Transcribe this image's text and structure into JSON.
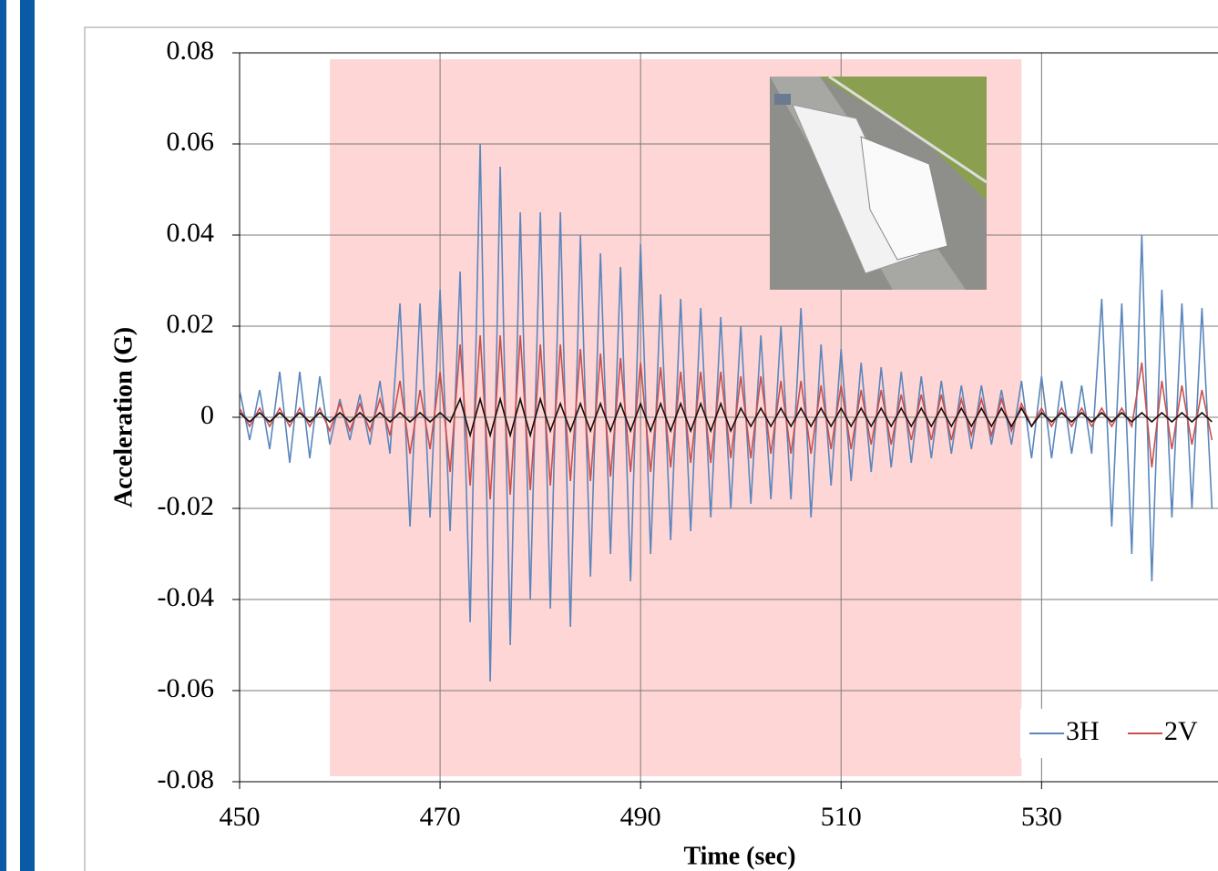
{
  "chart_data": {
    "type": "line",
    "xlabel": "Time (sec)",
    "ylabel": "Acceleration (G)",
    "x": [
      450,
      451,
      452,
      453,
      454,
      455,
      456,
      457,
      458,
      459,
      460,
      461,
      462,
      463,
      464,
      465,
      466,
      467,
      468,
      469,
      470,
      471,
      472,
      473,
      474,
      475,
      476,
      477,
      478,
      479,
      480,
      481,
      482,
      483,
      484,
      485,
      486,
      487,
      488,
      489,
      490,
      491,
      492,
      493,
      494,
      495,
      496,
      497,
      498,
      499,
      500,
      501,
      502,
      503,
      504,
      505,
      506,
      507,
      508,
      509,
      510,
      511,
      512,
      513,
      514,
      515,
      516,
      517,
      518,
      519,
      520,
      521,
      522,
      523,
      524,
      525,
      526,
      527,
      528,
      529,
      530,
      531,
      532,
      533,
      534,
      535,
      536,
      537,
      538,
      539,
      540,
      541,
      542,
      543,
      544,
      545,
      546,
      547
    ],
    "series": [
      {
        "name": "3H",
        "color": "#5a86bd",
        "values": [
          0.006,
          -0.005,
          0.006,
          -0.007,
          0.01,
          -0.01,
          0.01,
          -0.009,
          0.009,
          -0.006,
          0.004,
          -0.005,
          0.005,
          -0.006,
          0.008,
          -0.008,
          0.025,
          -0.024,
          0.025,
          -0.022,
          0.028,
          -0.025,
          0.032,
          -0.045,
          0.06,
          -0.058,
          0.055,
          -0.05,
          0.045,
          -0.04,
          0.045,
          -0.042,
          0.045,
          -0.046,
          0.04,
          -0.035,
          0.036,
          -0.03,
          0.033,
          -0.036,
          0.038,
          -0.03,
          0.027,
          -0.027,
          0.026,
          -0.025,
          0.024,
          -0.022,
          0.022,
          -0.02,
          0.02,
          -0.019,
          0.018,
          -0.018,
          0.02,
          -0.018,
          0.024,
          -0.022,
          0.016,
          -0.015,
          0.015,
          -0.014,
          0.012,
          -0.012,
          0.011,
          -0.011,
          0.01,
          -0.01,
          0.009,
          -0.009,
          0.008,
          -0.008,
          0.007,
          -0.007,
          0.007,
          -0.006,
          0.006,
          -0.006,
          0.008,
          -0.009,
          0.009,
          -0.009,
          0.008,
          -0.008,
          0.007,
          -0.008,
          0.026,
          -0.024,
          0.025,
          -0.03,
          0.04,
          -0.036,
          0.028,
          -0.022,
          0.025,
          -0.02,
          0.024,
          -0.02
        ]
      },
      {
        "name": "2V",
        "color": "#c9504d",
        "values": [
          0.002,
          -0.002,
          0.002,
          -0.002,
          0.002,
          -0.002,
          0.002,
          -0.002,
          0.002,
          -0.003,
          0.003,
          -0.003,
          0.003,
          -0.003,
          0.004,
          -0.004,
          0.008,
          -0.008,
          0.006,
          -0.007,
          0.01,
          -0.012,
          0.016,
          -0.015,
          0.018,
          -0.018,
          0.018,
          -0.017,
          0.018,
          -0.016,
          0.016,
          -0.015,
          0.016,
          -0.014,
          0.015,
          -0.014,
          0.014,
          -0.013,
          0.013,
          -0.012,
          0.012,
          -0.012,
          0.011,
          -0.011,
          0.01,
          -0.01,
          0.01,
          -0.01,
          0.01,
          -0.009,
          0.009,
          -0.009,
          0.009,
          -0.008,
          0.008,
          -0.008,
          0.008,
          -0.008,
          0.007,
          -0.007,
          0.007,
          -0.007,
          0.006,
          -0.006,
          0.006,
          -0.006,
          0.005,
          -0.005,
          0.005,
          -0.005,
          0.005,
          -0.005,
          0.004,
          -0.004,
          0.004,
          -0.004,
          0.004,
          -0.003,
          0.003,
          -0.002,
          0.002,
          -0.002,
          0.002,
          -0.002,
          0.002,
          -0.002,
          0.002,
          -0.002,
          0.002,
          -0.002,
          0.012,
          -0.011,
          0.008,
          -0.007,
          0.007,
          -0.006,
          0.006,
          -0.005
        ]
      },
      {
        "color": "#111111",
        "values": [
          0.001,
          -0.001,
          0.001,
          -0.001,
          0.001,
          -0.001,
          0.001,
          -0.001,
          0.001,
          -0.001,
          0.001,
          -0.001,
          0.001,
          -0.001,
          0.001,
          -0.001,
          0.001,
          -0.001,
          0.001,
          -0.001,
          0.001,
          -0.001,
          0.004,
          -0.004,
          0.004,
          -0.004,
          0.004,
          -0.004,
          0.004,
          -0.004,
          0.004,
          -0.003,
          0.003,
          -0.003,
          0.003,
          -0.003,
          0.003,
          -0.003,
          0.003,
          -0.003,
          0.003,
          -0.003,
          0.003,
          -0.003,
          0.003,
          -0.003,
          0.003,
          -0.003,
          0.003,
          -0.003,
          0.002,
          -0.002,
          0.002,
          -0.002,
          0.002,
          -0.002,
          0.002,
          -0.002,
          0.002,
          -0.002,
          0.002,
          -0.002,
          0.002,
          -0.002,
          0.002,
          -0.002,
          0.002,
          -0.002,
          0.002,
          -0.002,
          0.002,
          -0.002,
          0.002,
          -0.002,
          0.002,
          -0.002,
          0.002,
          -0.002,
          0.002,
          -0.002,
          0.001,
          -0.001,
          0.001,
          -0.001,
          0.001,
          -0.001,
          0.001,
          -0.001,
          0.001,
          -0.001,
          0.001,
          -0.001,
          0.001,
          -0.001,
          0.001,
          -0.001,
          0.001,
          -0.001
        ]
      }
    ],
    "xlim": [
      450,
      547.6
    ],
    "xticks": [
      450,
      470,
      490,
      510,
      530
    ],
    "ylim": [
      -0.08,
      0.08
    ],
    "yticks": [
      -0.08,
      -0.06,
      -0.04,
      -0.02,
      0,
      0.02,
      0.04,
      0.06,
      0.08
    ],
    "grid": true,
    "legend": "lower right",
    "highlight": {
      "x": [
        459,
        528
      ],
      "color": "#ffd6d6"
    }
  }
}
